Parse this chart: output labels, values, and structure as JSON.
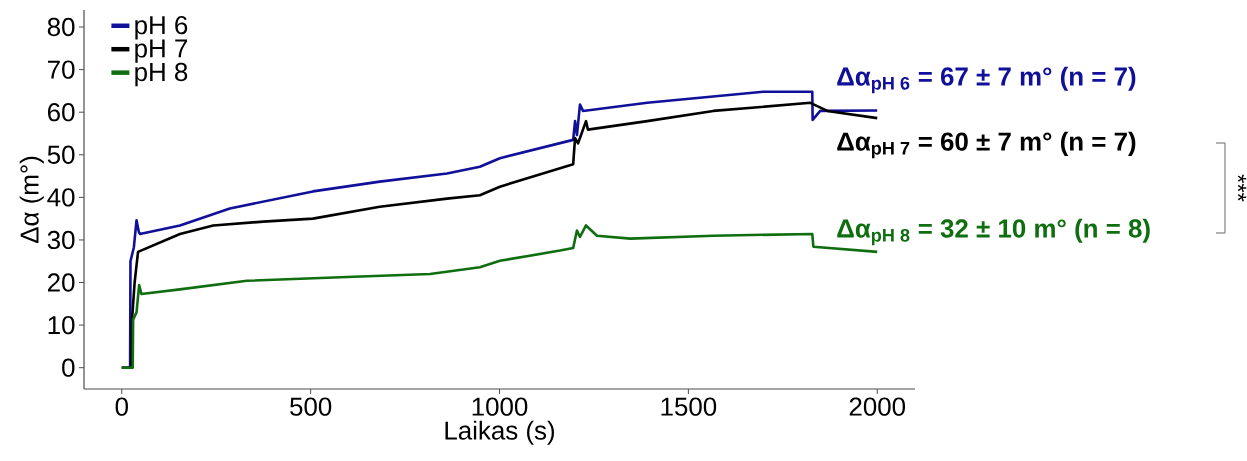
{
  "chart_data": {
    "type": "line",
    "xlabel": "Laikas (s)",
    "ylabel": "Δα (m°)",
    "xlim": [
      -100,
      2100
    ],
    "ylim": [
      -5,
      84
    ],
    "xticks": [
      0,
      500,
      1000,
      1500,
      2000
    ],
    "yticks": [
      0,
      10,
      20,
      30,
      40,
      50,
      60,
      70,
      80
    ],
    "legend": "top left",
    "marker": "none",
    "line_style": "solid",
    "grid": false,
    "series": [
      {
        "name": "pH 6",
        "color": "#10109a",
        "x": [
          0,
          22,
          23,
          32,
          39,
          45,
          48,
          154,
          286,
          506,
          683,
          861,
          948,
          1001,
          1195,
          1200,
          1205,
          1213,
          1221,
          1391,
          1698,
          1828,
          1829,
          1849,
          2000
        ],
        "values": [
          0,
          0,
          25,
          28.3,
          34.6,
          31.9,
          31.4,
          33.4,
          37.4,
          41.4,
          43.7,
          45.6,
          47.2,
          49.2,
          53.5,
          57.9,
          54.6,
          61.8,
          60.3,
          62.2,
          64.8,
          64.8,
          58.2,
          60.3,
          60.4
        ]
      },
      {
        "name": "pH 7",
        "color": "#000000",
        "x": [
          0,
          25,
          26,
          34,
          43,
          154,
          242,
          374,
          506,
          683,
          861,
          948,
          1001,
          1195,
          1200,
          1208,
          1229,
          1234,
          1391,
          1566,
          1823,
          1868,
          2000
        ],
        "values": [
          0,
          0,
          9.8,
          20,
          27.2,
          31.4,
          33.4,
          34.3,
          35,
          37.8,
          39.7,
          40.5,
          42.5,
          47.8,
          53.9,
          52.7,
          57.9,
          55.9,
          57.9,
          60.3,
          62.2,
          60.3,
          58.6
        ]
      },
      {
        "name": "pH 8",
        "color": "#0f6e0f",
        "x": [
          0,
          29,
          30,
          39,
          46,
          52,
          154,
          331,
          596,
          816,
          948,
          1001,
          1160,
          1195,
          1205,
          1213,
          1229,
          1258,
          1346,
          1566,
          1828,
          1831,
          2000
        ],
        "values": [
          0,
          0,
          11.3,
          13,
          19.4,
          17.3,
          18.4,
          20.4,
          21.3,
          22,
          23.6,
          25.1,
          27.5,
          28.1,
          32.2,
          30.7,
          33.4,
          31,
          30.3,
          31,
          31.4,
          28.4,
          27.2
        ]
      }
    ],
    "annotations": [
      "Δα$_{pH 6}$ = 67 ± 7 m° (n = 7)",
      "Δα$_{pH 7}$ = 60 ± 7 m° (n = 7)",
      "Δα$_{pH 8}$ = 32 ± 10 m° (n = 8)",
      "***"
    ]
  }
}
